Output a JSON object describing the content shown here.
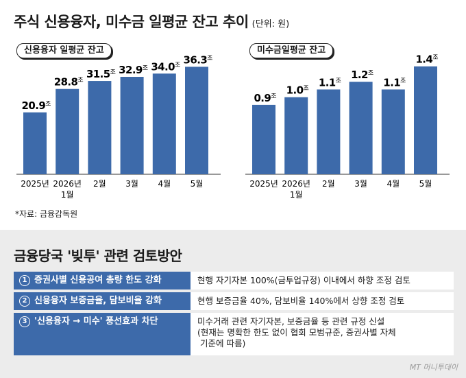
{
  "title": "주식 신용융자, 미수금 일평균 잔고 추이",
  "unit": "(단위: 원)",
  "source": "*자료: 금융감독원",
  "colors": {
    "bar": "#3d6aaa",
    "bottom_bg": "#ececec"
  },
  "chart_data": [
    {
      "type": "bar",
      "title": "신용융자 일평균 잔고",
      "categories": [
        "2025년",
        "2026년\n1월",
        "2월",
        "3월",
        "4월",
        "5월"
      ],
      "values": [
        20.9,
        28.8,
        31.5,
        32.9,
        34.0,
        36.3
      ],
      "value_labels": [
        "20.9",
        "28.8",
        "31.5",
        "32.9",
        "34.0",
        "36.3"
      ],
      "value_suffix": "조",
      "ylim": [
        0,
        38
      ]
    },
    {
      "type": "bar",
      "title": "미수금일평균 잔고",
      "categories": [
        "2025년",
        "2026년\n1월",
        "2월",
        "3월",
        "4월",
        "5월"
      ],
      "values": [
        0.9,
        1.0,
        1.1,
        1.2,
        1.1,
        1.4
      ],
      "value_labels": [
        "0.9",
        "1.0",
        "1.1",
        "1.2",
        "1.1",
        "1.4"
      ],
      "value_suffix": "조",
      "ylim": [
        0,
        1.46
      ]
    }
  ],
  "section": {
    "title": "금융당국 '빚투' 관련 검토방안",
    "measures": [
      {
        "num": "1",
        "label": "증권사별 신용공여 총량 한도 강화",
        "desc": [
          "현행 자기자본 100%(금투업규정) 이내에서 하향 조정 검토"
        ]
      },
      {
        "num": "2",
        "label": "신용융자 보증금율, 담보비율 강화",
        "desc": [
          "현행 보증금율 40%, 담보비율 140%에서 상향 조정 검토"
        ]
      },
      {
        "num": "3",
        "label": "'신용융자 → 미수' 풍선효과 차단",
        "desc": [
          "미수거래 관련 자기자본, 보증금율 등 관련 규정 신설",
          "(현재는 명확한 한도 없이 협회 모범규준, 증권사별 자체",
          "기준에 따름)"
        ]
      }
    ]
  },
  "watermark": "MT 머니투데이"
}
